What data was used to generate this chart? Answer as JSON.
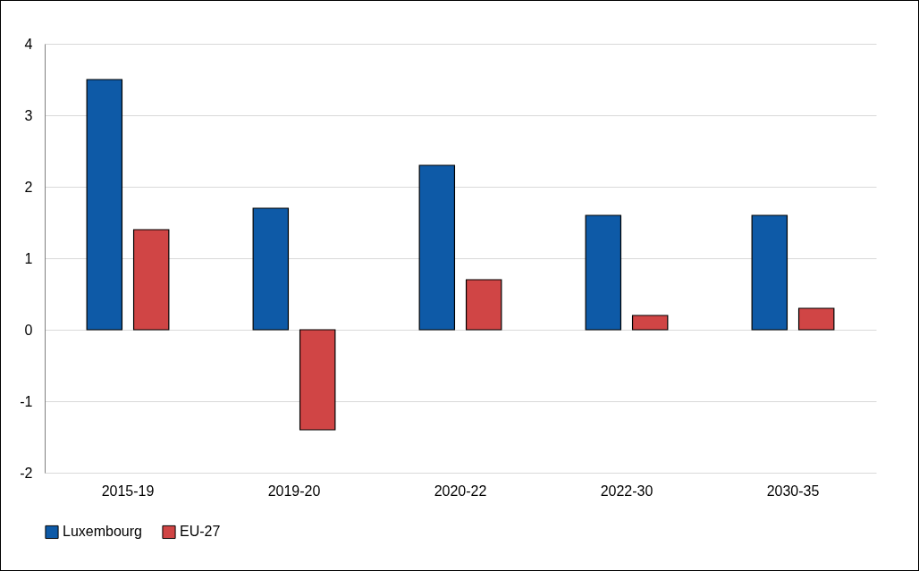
{
  "chart_data": {
    "type": "bar",
    "categories": [
      "2015-19",
      "2019-20",
      "2020-22",
      "2022-30",
      "2030-35"
    ],
    "series": [
      {
        "name": "Luxembourg",
        "color": "#0e5aa7",
        "values": [
          3.5,
          1.7,
          2.3,
          1.6,
          1.6
        ]
      },
      {
        "name": "EU-27",
        "color": "#d04545",
        "values": [
          1.4,
          -1.4,
          0.7,
          0.2,
          0.3
        ]
      }
    ],
    "ylim": [
      -2,
      4
    ],
    "yticks": [
      -2,
      -1,
      0,
      1,
      2,
      3,
      4
    ],
    "grid": "y",
    "legend": "bottom"
  }
}
